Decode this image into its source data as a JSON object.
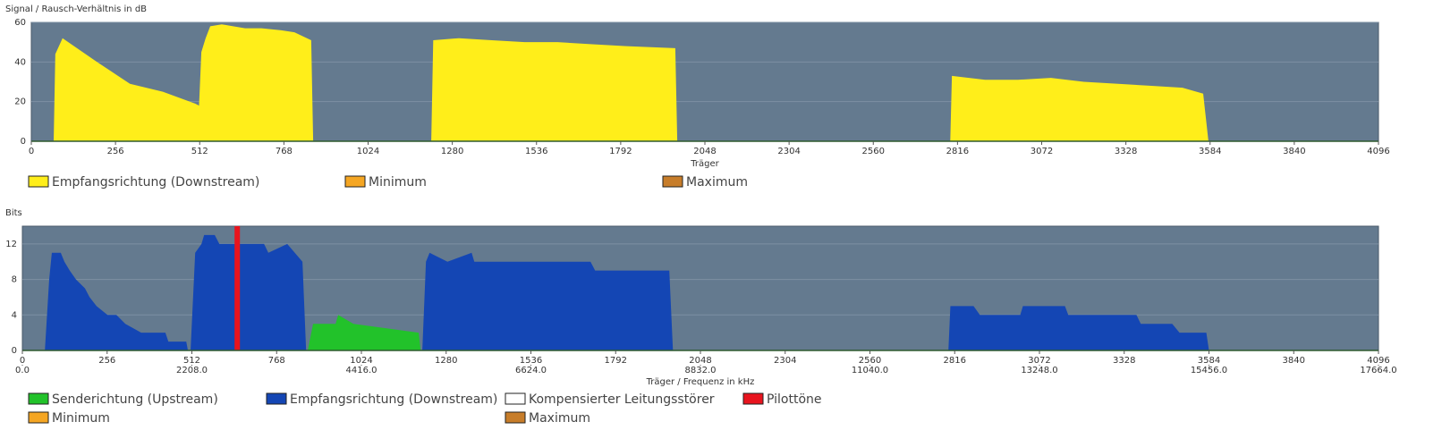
{
  "chart_data": [
    {
      "type": "area",
      "y_label": "Signal / Rausch-Verhältnis in dB",
      "x_label": "Träger",
      "xlim": [
        0,
        4096
      ],
      "xticks": [
        0,
        256,
        512,
        768,
        1024,
        1280,
        1536,
        1792,
        2048,
        2304,
        2560,
        2816,
        3072,
        3328,
        3584,
        3840,
        4096
      ],
      "ylim": [
        0,
        60
      ],
      "yticks": [
        0,
        20,
        40,
        60
      ],
      "grid": true,
      "series": [
        {
          "name": "Empfangsrichtung (Downstream)",
          "color": "#ffee1a",
          "x": [
            0,
            68,
            73,
            95,
            200,
            300,
            400,
            498,
            510,
            517,
            530,
            544,
            579,
            650,
            700,
            760,
            800,
            851,
            857,
            1216,
            1222,
            1300,
            1400,
            1500,
            1600,
            1700,
            1809,
            1958,
            1964,
            2794,
            2799,
            2900,
            3000,
            3100,
            3200,
            3304,
            3400,
            3500,
            3563,
            3579,
            4096
          ],
          "values": [
            0,
            0,
            44,
            52,
            40,
            29,
            25,
            19,
            18,
            45,
            52,
            58,
            59,
            57,
            57,
            56,
            55,
            51,
            0,
            0,
            51,
            52,
            51,
            50,
            50,
            49,
            48,
            47,
            0,
            0,
            33,
            31,
            31,
            32,
            30,
            29,
            28,
            27,
            24,
            0,
            0
          ]
        },
        {
          "name": "Minimum",
          "color": "#f5a623"
        },
        {
          "name": "Maximum",
          "color": "#c77d2a"
        }
      ]
    },
    {
      "type": "area",
      "y_label": "Bits",
      "x_label": "Träger / Frequenz in kHz",
      "xlim": [
        0,
        4096
      ],
      "xticks": [
        0,
        256,
        512,
        768,
        1024,
        1280,
        1536,
        1792,
        2048,
        2304,
        2560,
        2816,
        3072,
        3328,
        3584,
        3840,
        4096
      ],
      "x2lim": [
        0,
        17664
      ],
      "x2ticks": [
        {
          "value": 0,
          "label": "0.0"
        },
        {
          "value": 2208,
          "label": "2208.0"
        },
        {
          "value": 4416,
          "label": "4416.0"
        },
        {
          "value": 6624,
          "label": "6624.0"
        },
        {
          "value": 8832,
          "label": "8832.0"
        },
        {
          "value": 11040,
          "label": "11040.0"
        },
        {
          "value": 13248,
          "label": "13248.0"
        },
        {
          "value": 15456,
          "label": "15456.0"
        },
        {
          "value": 17664,
          "label": "17664.0"
        }
      ],
      "ylim": [
        0,
        14
      ],
      "yticks": [
        0,
        4,
        8,
        12
      ],
      "grid": true,
      "series": [
        {
          "name": "Senderichtung (Upstream)",
          "color": "#22c22a",
          "x": [
            862,
            878,
            946,
            954,
            1000,
            1197,
            1203
          ],
          "values": [
            0,
            3,
            3,
            4,
            3,
            2,
            0
          ]
        },
        {
          "name": "Empfangsrichtung (Downstream)",
          "color": "#1446b4",
          "x": [
            0,
            68,
            81,
            89,
            116,
            127,
            143,
            162,
            189,
            203,
            224,
            257,
            284,
            311,
            359,
            432,
            441,
            495,
            500,
            508,
            522,
            541,
            549,
            581,
            595,
            730,
            743,
            800,
            846,
            857,
            1208,
            1219,
            1230,
            1284,
            1357,
            1365,
            1716,
            1730,
            1954,
            1965,
            2797,
            2803,
            2873,
            2892,
            3014,
            3022,
            3149,
            3159,
            3365,
            3378,
            3473,
            3495,
            3576,
            3584,
            4096
          ],
          "values": [
            0,
            0,
            8,
            11,
            11,
            10,
            9,
            8,
            7,
            6,
            5,
            4,
            4,
            3,
            2,
            2,
            1,
            1,
            0,
            0,
            11,
            12,
            13,
            13,
            12,
            12,
            11,
            12,
            10,
            0,
            0,
            10,
            11,
            10,
            11,
            10,
            10,
            9,
            9,
            0,
            0,
            5,
            5,
            4,
            4,
            5,
            5,
            4,
            4,
            3,
            3,
            2,
            2,
            0,
            0
          ]
        },
        {
          "name": "Kompensierter Leitungsstörer",
          "color": "#ffffff"
        },
        {
          "name": "Pilottöne",
          "color": "#e8141e",
          "x": [
            649
          ]
        },
        {
          "name": "Minimum",
          "color": "#f5a623"
        },
        {
          "name": "Maximum",
          "color": "#c77d2a"
        }
      ]
    }
  ]
}
